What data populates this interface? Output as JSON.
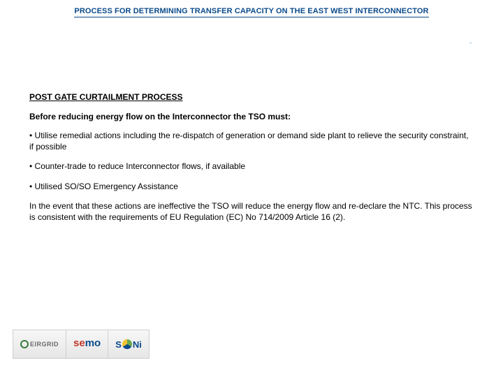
{
  "title": "PROCESS FOR DETERMINING TRANSFER CAPACITY ON THE EAST WEST INTERCONNECTOR",
  "section_heading": "POST GATE CURTAILMENT PROCESS",
  "subheading": "Before reducing energy flow on the Interconnector the TSO must:",
  "bullets": [
    "• Utilise remedial actions including the re-dispatch of generation or demand side plant to relieve the security constraint, if possible",
    "• Counter-trade to reduce Interconnector flows, if available",
    "• Utilised SO/SO Emergency Assistance"
  ],
  "closing": "In the event that these actions are ineffective the TSO will reduce the energy flow and re-declare the NTC. This process is consistent with the requirements of EU Regulation (EC) No 714/2009 Article 16 (2).",
  "logos": {
    "eirgrid": "EIRGRID",
    "semo_1": "se",
    "semo_2": "mo",
    "soni_1": "S",
    "soni_2": "Ni"
  },
  "colors": {
    "title": "#0a4a8a",
    "text": "#000000",
    "background": "#ffffff"
  }
}
